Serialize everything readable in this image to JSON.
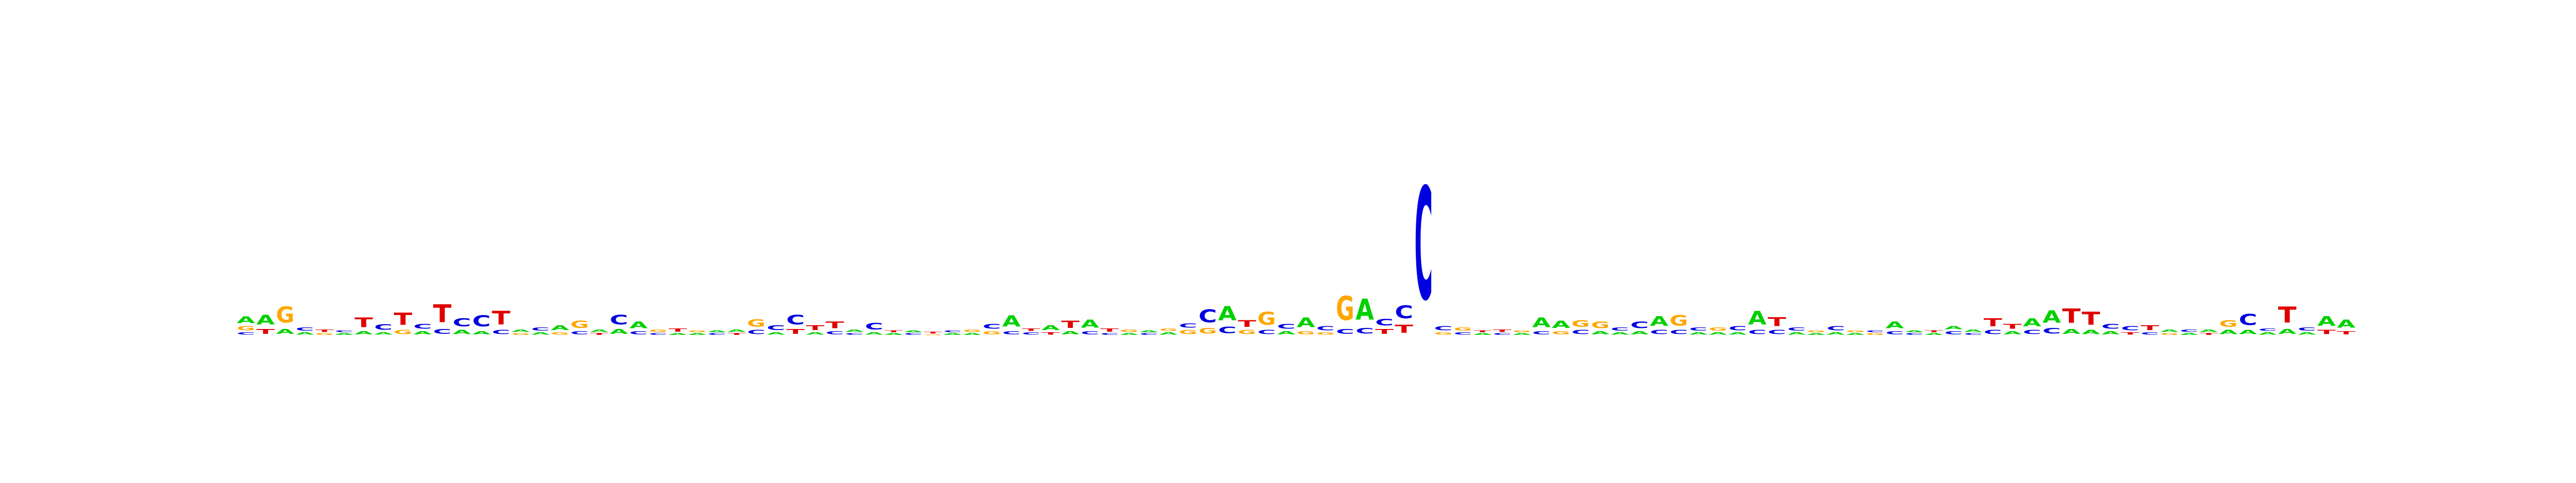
{
  "chart_data": {
    "type": "sequence-logo",
    "title": "",
    "xlabel": "",
    "ylabel": "",
    "colors": {
      "A": "#00d000",
      "C": "#0000e0",
      "G": "#ffa500",
      "T": "#e00000"
    },
    "ylim": [
      0,
      2
    ],
    "columns": [
      [
        [
          "A",
          0.08
        ],
        [
          "C",
          0.03
        ],
        [
          "G",
          0.05
        ]
      ],
      [
        [
          "A",
          0.12
        ],
        [
          "T",
          0.06
        ]
      ],
      [
        [
          "G",
          0.2
        ],
        [
          "A",
          0.06
        ]
      ],
      [
        [
          "C",
          0.04
        ],
        [
          "A",
          0.03
        ]
      ],
      [
        [
          "T",
          0.03
        ],
        [
          "G",
          0.02
        ]
      ],
      [
        [
          "A",
          0.02
        ],
        [
          "C",
          0.02
        ]
      ],
      [
        [
          "T",
          0.12
        ],
        [
          "A",
          0.04
        ]
      ],
      [
        [
          "C",
          0.07
        ],
        [
          "A",
          0.03
        ]
      ],
      [
        [
          "T",
          0.15
        ],
        [
          "G",
          0.05
        ]
      ],
      [
        [
          "C",
          0.06
        ],
        [
          "A",
          0.04
        ]
      ],
      [
        [
          "T",
          0.22
        ],
        [
          "C",
          0.06
        ]
      ],
      [
        [
          "C",
          0.1
        ],
        [
          "A",
          0.05
        ]
      ],
      [
        [
          "C",
          0.14
        ],
        [
          "A",
          0.04
        ]
      ],
      [
        [
          "T",
          0.17
        ],
        [
          "C",
          0.05
        ]
      ],
      [
        [
          "A",
          0.03
        ],
        [
          "G",
          0.02
        ]
      ],
      [
        [
          "C",
          0.04
        ],
        [
          "A",
          0.03
        ]
      ],
      [
        [
          "A",
          0.06
        ],
        [
          "G",
          0.03
        ]
      ],
      [
        [
          "G",
          0.09
        ],
        [
          "C",
          0.04
        ]
      ],
      [
        [
          "A",
          0.03
        ],
        [
          "T",
          0.02
        ]
      ],
      [
        [
          "C",
          0.12
        ],
        [
          "A",
          0.06
        ]
      ],
      [
        [
          "A",
          0.08
        ],
        [
          "C",
          0.04
        ]
      ],
      [
        [
          "G",
          0.03
        ],
        [
          "C",
          0.02
        ]
      ],
      [
        [
          "T",
          0.04
        ],
        [
          "A",
          0.02
        ]
      ],
      [
        [
          "A",
          0.02
        ],
        [
          "G",
          0.02
        ]
      ],
      [
        [
          "C",
          0.02
        ],
        [
          "A",
          0.02
        ]
      ],
      [
        [
          "A",
          0.03
        ],
        [
          "T",
          0.02
        ]
      ],
      [
        [
          "G",
          0.09
        ],
        [
          "C",
          0.05
        ]
      ],
      [
        [
          "C",
          0.06
        ],
        [
          "A",
          0.03
        ]
      ],
      [
        [
          "C",
          0.12
        ],
        [
          "T",
          0.06
        ]
      ],
      [
        [
          "T",
          0.06
        ],
        [
          "A",
          0.03
        ]
      ],
      [
        [
          "T",
          0.08
        ],
        [
          "C",
          0.04
        ]
      ],
      [
        [
          "A",
          0.03
        ],
        [
          "C",
          0.02
        ]
      ],
      [
        [
          "C",
          0.08
        ],
        [
          "A",
          0.03
        ]
      ],
      [
        [
          "A",
          0.02
        ],
        [
          "T",
          0.02
        ]
      ],
      [
        [
          "C",
          0.02
        ],
        [
          "A",
          0.02
        ]
      ],
      [
        [
          "T",
          0.02
        ],
        [
          "G",
          0.01
        ]
      ],
      [
        [
          "A",
          0.02
        ],
        [
          "C",
          0.02
        ]
      ],
      [
        [
          "G",
          0.03
        ],
        [
          "A",
          0.02
        ]
      ],
      [
        [
          "C",
          0.06
        ],
        [
          "G",
          0.04
        ]
      ],
      [
        [
          "A",
          0.14
        ],
        [
          "C",
          0.04
        ]
      ],
      [
        [
          "C",
          0.03
        ],
        [
          "T",
          0.03
        ]
      ],
      [
        [
          "A",
          0.06
        ],
        [
          "T",
          0.03
        ]
      ],
      [
        [
          "T",
          0.09
        ],
        [
          "A",
          0.04
        ]
      ],
      [
        [
          "A",
          0.1
        ],
        [
          "C",
          0.04
        ]
      ],
      [
        [
          "T",
          0.04
        ],
        [
          "C",
          0.02
        ]
      ],
      [
        [
          "G",
          0.03
        ],
        [
          "A",
          0.02
        ]
      ],
      [
        [
          "C",
          0.02
        ],
        [
          "A",
          0.02
        ]
      ],
      [
        [
          "A",
          0.03
        ],
        [
          "G",
          0.03
        ]
      ],
      [
        [
          "G",
          0.05
        ],
        [
          "C",
          0.05
        ]
      ],
      [
        [
          "C",
          0.16
        ],
        [
          "G",
          0.07
        ]
      ],
      [
        [
          "A",
          0.18
        ],
        [
          "C",
          0.08
        ]
      ],
      [
        [
          "T",
          0.08
        ],
        [
          "G",
          0.05
        ]
      ],
      [
        [
          "G",
          0.16
        ],
        [
          "C",
          0.05
        ]
      ],
      [
        [
          "C",
          0.06
        ],
        [
          "A",
          0.04
        ]
      ],
      [
        [
          "A",
          0.12
        ],
        [
          "G",
          0.04
        ]
      ],
      [
        [
          "C",
          0.05
        ],
        [
          "G",
          0.03
        ]
      ],
      [
        [
          "G",
          0.3
        ],
        [
          "C",
          0.06
        ]
      ],
      [
        [
          "A",
          0.26
        ],
        [
          "C",
          0.07
        ]
      ],
      [
        [
          "C",
          0.08
        ],
        [
          "T",
          0.06
        ]
      ],
      [
        [
          "C",
          0.16
        ],
        [
          "T",
          0.1
        ]
      ],
      [
        [
          "C",
          1.4
        ]
      ],
      [
        [
          "C",
          0.05
        ],
        [
          "G",
          0.03
        ]
      ],
      [
        [
          "G",
          0.04
        ],
        [
          "C",
          0.03
        ]
      ],
      [
        [
          "A",
          0.02
        ],
        [
          "T",
          0.02
        ]
      ],
      [
        [
          "T",
          0.03
        ],
        [
          "C",
          0.02
        ]
      ],
      [
        [
          "A",
          0.02
        ],
        [
          "G",
          0.02
        ]
      ],
      [
        [
          "A",
          0.12
        ],
        [
          "C",
          0.04
        ]
      ],
      [
        [
          "A",
          0.09
        ],
        [
          "G",
          0.04
        ]
      ],
      [
        [
          "G",
          0.08
        ],
        [
          "C",
          0.05
        ]
      ],
      [
        [
          "G",
          0.08
        ],
        [
          "A",
          0.04
        ]
      ],
      [
        [
          "C",
          0.04
        ],
        [
          "A",
          0.03
        ]
      ],
      [
        [
          "C",
          0.08
        ],
        [
          "A",
          0.04
        ]
      ],
      [
        [
          "A",
          0.12
        ],
        [
          "C",
          0.05
        ]
      ],
      [
        [
          "G",
          0.13
        ],
        [
          "C",
          0.05
        ]
      ],
      [
        [
          "C",
          0.04
        ],
        [
          "A",
          0.03
        ]
      ],
      [
        [
          "G",
          0.04
        ],
        [
          "A",
          0.03
        ]
      ],
      [
        [
          "C",
          0.05
        ],
        [
          "A",
          0.03
        ]
      ],
      [
        [
          "A",
          0.17
        ],
        [
          "C",
          0.05
        ]
      ],
      [
        [
          "T",
          0.11
        ],
        [
          "C",
          0.05
        ]
      ],
      [
        [
          "C",
          0.04
        ],
        [
          "A",
          0.03
        ]
      ],
      [
        [
          "A",
          0.02
        ],
        [
          "G",
          0.02
        ]
      ],
      [
        [
          "C",
          0.05
        ],
        [
          "A",
          0.03
        ]
      ],
      [
        [
          "A",
          0.02
        ],
        [
          "G",
          0.02
        ]
      ],
      [
        [
          "G",
          0.02
        ],
        [
          "C",
          0.02
        ]
      ],
      [
        [
          "A",
          0.08
        ],
        [
          "C",
          0.04
        ]
      ],
      [
        [
          "C",
          0.02
        ],
        [
          "A",
          0.02
        ]
      ],
      [
        [
          "A",
          0.02
        ],
        [
          "T",
          0.02
        ]
      ],
      [
        [
          "C",
          0.04
        ],
        [
          "A",
          0.04
        ]
      ],
      [
        [
          "A",
          0.03
        ],
        [
          "C",
          0.02
        ]
      ],
      [
        [
          "T",
          0.1
        ],
        [
          "C",
          0.05
        ]
      ],
      [
        [
          "T",
          0.06
        ],
        [
          "A",
          0.04
        ]
      ],
      [
        [
          "A",
          0.1
        ],
        [
          "C",
          0.05
        ]
      ],
      [
        [
          "A",
          0.15
        ],
        [
          "C",
          0.07
        ]
      ],
      [
        [
          "T",
          0.18
        ],
        [
          "A",
          0.06
        ]
      ],
      [
        [
          "T",
          0.16
        ],
        [
          "A",
          0.05
        ]
      ],
      [
        [
          "C",
          0.06
        ],
        [
          "A",
          0.04
        ]
      ],
      [
        [
          "C",
          0.05
        ],
        [
          "T",
          0.03
        ]
      ],
      [
        [
          "T",
          0.06
        ],
        [
          "C",
          0.03
        ]
      ],
      [
        [
          "A",
          0.03
        ],
        [
          "G",
          0.02
        ]
      ],
      [
        [
          "C",
          0.03
        ],
        [
          "A",
          0.02
        ]
      ],
      [
        [
          "A",
          0.03
        ],
        [
          "T",
          0.02
        ]
      ],
      [
        [
          "G",
          0.08
        ],
        [
          "A",
          0.05
        ]
      ],
      [
        [
          "C",
          0.14
        ],
        [
          "A",
          0.05
        ]
      ],
      [
        [
          "A",
          0.03
        ],
        [
          "C",
          0.03
        ]
      ],
      [
        [
          "T",
          0.2
        ],
        [
          "A",
          0.06
        ]
      ],
      [
        [
          "C",
          0.04
        ],
        [
          "A",
          0.03
        ]
      ],
      [
        [
          "A",
          0.12
        ],
        [
          "T",
          0.05
        ]
      ],
      [
        [
          "A",
          0.1
        ],
        [
          "T",
          0.04
        ]
      ]
    ]
  }
}
